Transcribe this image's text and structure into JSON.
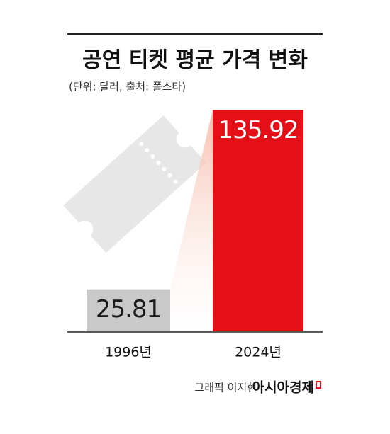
{
  "chart_data": {
    "type": "bar",
    "title": "공연 티켓 평균 가격 변화",
    "subtitle": "(단위: 달러, 출처: 폴스타)",
    "categories": [
      "1996년",
      "2024년"
    ],
    "values": [
      25.81,
      135.92
    ],
    "colors": [
      "#c9c9c9",
      "#e50f18"
    ],
    "label_colors": [
      "#1a1a1a",
      "#ffffff"
    ],
    "ylim": [
      0,
      140
    ],
    "credit": "그래픽 이지현",
    "publisher": "아시아경제"
  }
}
